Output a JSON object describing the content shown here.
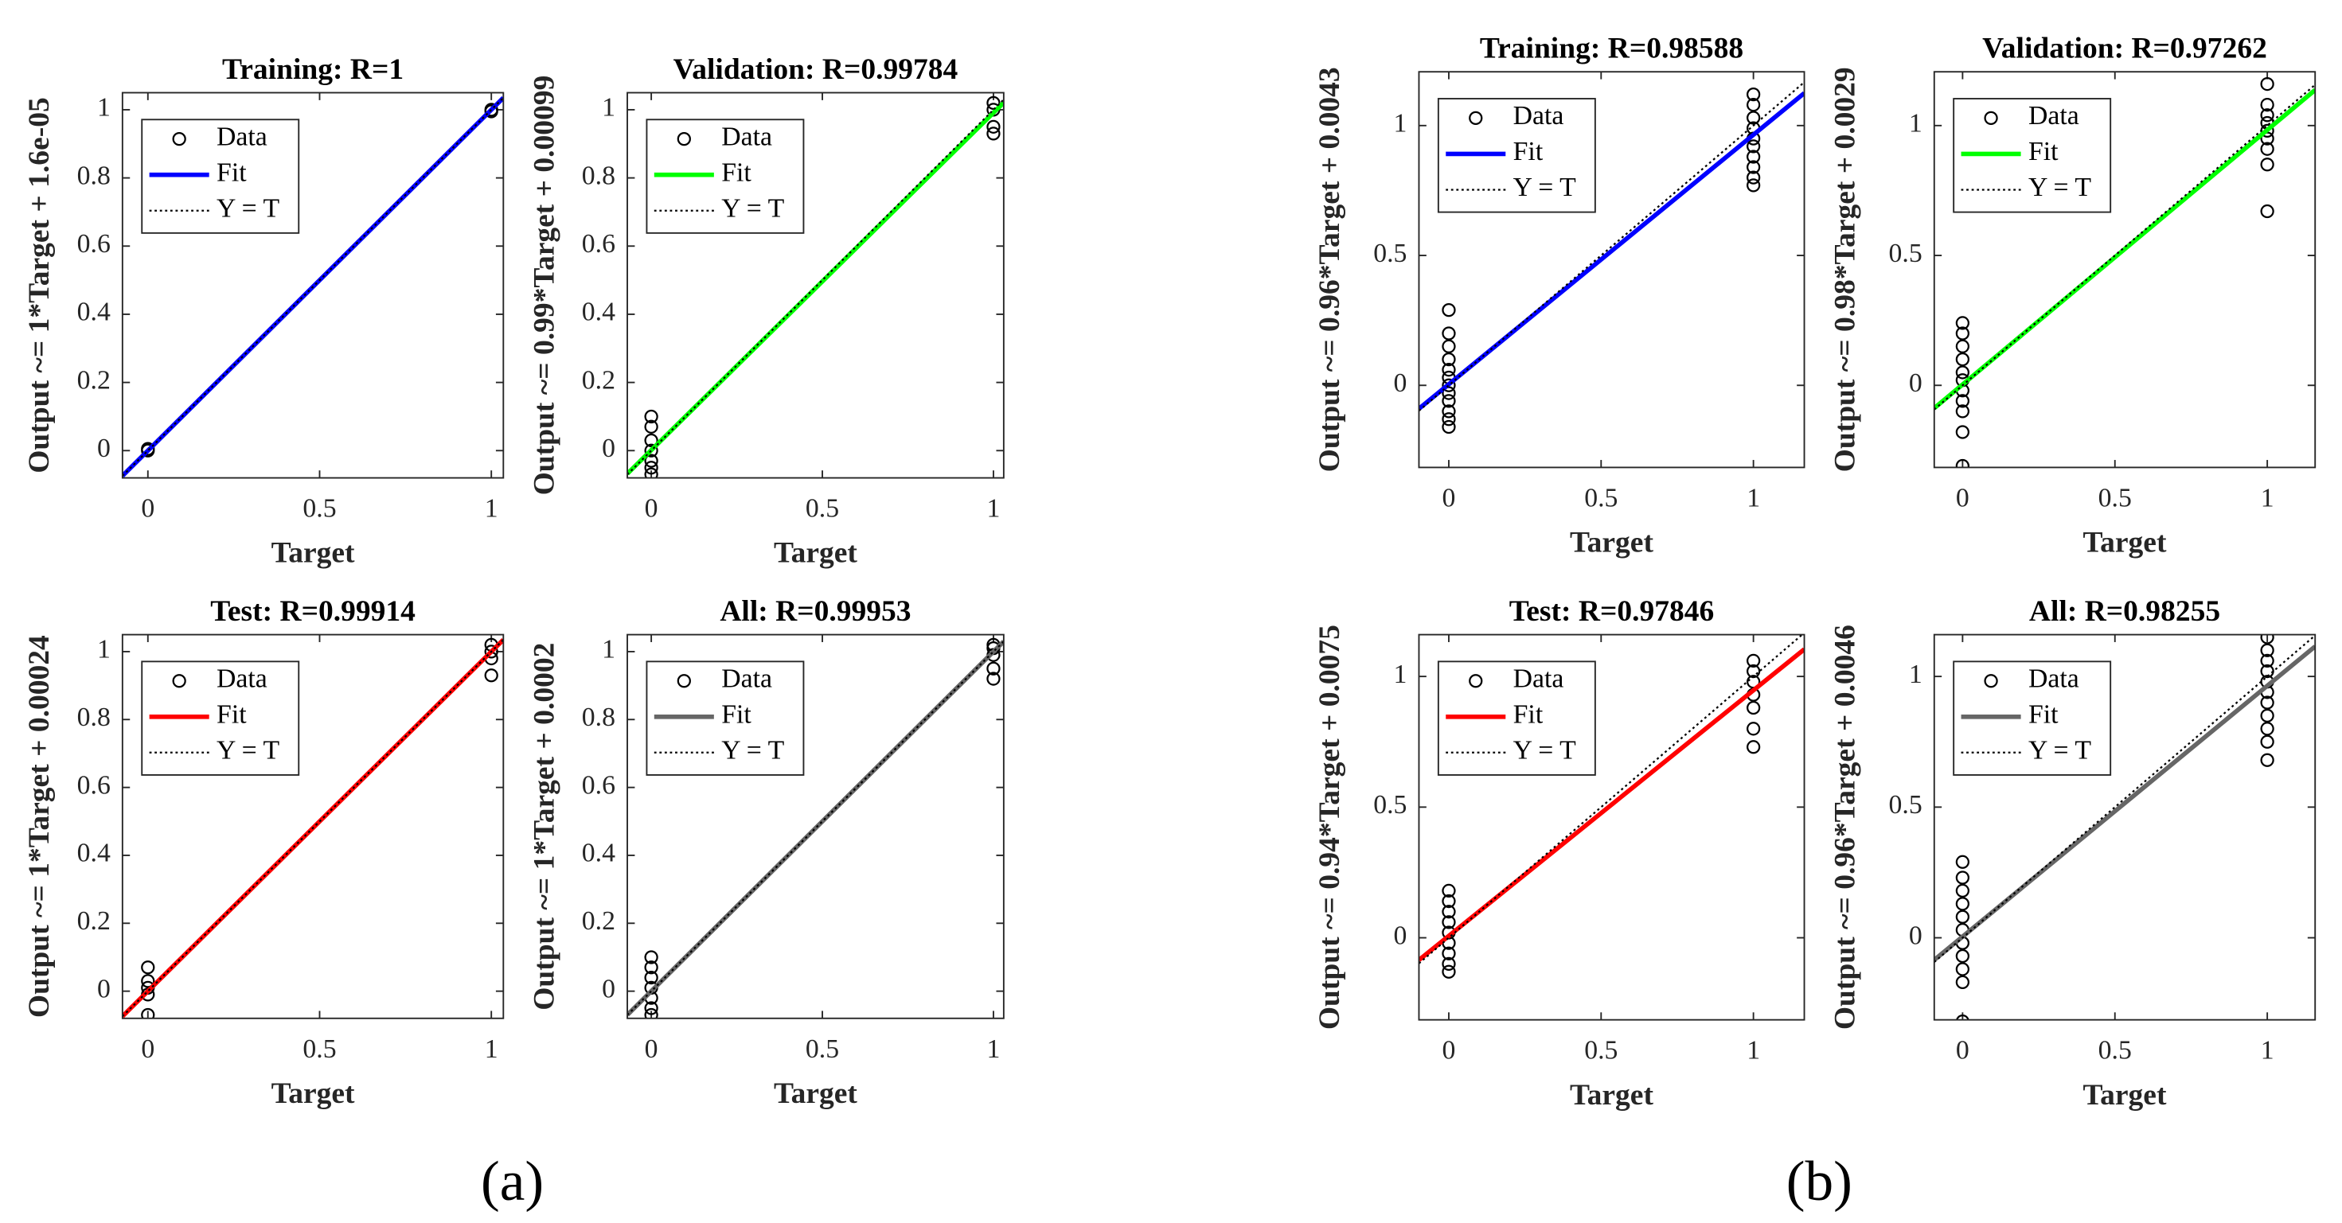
{
  "chart_data": [
    {
      "type": "scatter",
      "title": "Training: R=1",
      "xlabel": "Target",
      "ylabel": "Output ~= 1*Target + 1.6e-05",
      "xlim": [
        -0.074,
        1.035
      ],
      "ylim": [
        -0.08,
        1.05
      ],
      "xticks": [
        0,
        0.5,
        1
      ],
      "yticks": [
        0,
        0.2,
        0.4,
        0.6,
        0.8,
        1
      ],
      "series": [
        {
          "name": "Data",
          "style": "marker",
          "color": "#000000",
          "x": [
            0,
            0,
            1,
            1
          ],
          "values": [
            0,
            0.005,
            1,
            0.995
          ]
        },
        {
          "name": "Fit",
          "style": "solid",
          "color": "#0000ff",
          "x": [
            -0.074,
            1.035
          ],
          "values": [
            -0.074,
            1.035
          ]
        },
        {
          "name": "Y = T",
          "style": "dotted",
          "color": "#000000",
          "x": [
            -0.074,
            1.035
          ],
          "values": [
            -0.074,
            1.035
          ]
        }
      ]
    },
    {
      "type": "scatter",
      "title": "Validation: R=0.99784",
      "xlabel": "Target",
      "ylabel": "Output ~= 0.99*Target + 0.00099",
      "xlim": [
        -0.07,
        1.03
      ],
      "ylim": [
        -0.08,
        1.05
      ],
      "xticks": [
        0,
        0.5,
        1
      ],
      "yticks": [
        0,
        0.2,
        0.4,
        0.6,
        0.8,
        1
      ],
      "series": [
        {
          "name": "Data",
          "style": "marker",
          "color": "#000000",
          "x": [
            0,
            0,
            0,
            0,
            0,
            0,
            0,
            1,
            1,
            1,
            1
          ],
          "values": [
            0.1,
            0.07,
            0.03,
            0,
            -0.03,
            -0.05,
            -0.07,
            1.02,
            1,
            0.95,
            0.93
          ]
        },
        {
          "name": "Fit",
          "style": "solid",
          "color": "#00ff00",
          "x": [
            -0.07,
            1.03
          ],
          "values": [
            -0.068,
            1.021
          ]
        },
        {
          "name": "Y = T",
          "style": "dotted",
          "color": "#000000",
          "x": [
            -0.07,
            1.03
          ],
          "values": [
            -0.07,
            1.03
          ]
        }
      ]
    },
    {
      "type": "scatter",
      "title": "Test: R=0.99914",
      "xlabel": "Target",
      "ylabel": "Output ~= 1*Target + 0.00024",
      "xlim": [
        -0.074,
        1.035
      ],
      "ylim": [
        -0.08,
        1.05
      ],
      "xticks": [
        0,
        0.5,
        1
      ],
      "yticks": [
        0,
        0.2,
        0.4,
        0.6,
        0.8,
        1
      ],
      "series": [
        {
          "name": "Data",
          "style": "marker",
          "color": "#000000",
          "x": [
            0,
            0,
            0,
            0,
            0,
            1,
            1,
            1,
            1
          ],
          "values": [
            0.07,
            0.03,
            0.01,
            -0.01,
            -0.07,
            1.02,
            1,
            0.98,
            0.93
          ]
        },
        {
          "name": "Fit",
          "style": "solid",
          "color": "#ff0000",
          "x": [
            -0.074,
            1.035
          ],
          "values": [
            -0.074,
            1.035
          ]
        },
        {
          "name": "Y = T",
          "style": "dotted",
          "color": "#000000",
          "x": [
            -0.074,
            1.035
          ],
          "values": [
            -0.074,
            1.035
          ]
        }
      ]
    },
    {
      "type": "scatter",
      "title": "All: R=0.99953",
      "xlabel": "Target",
      "ylabel": "Output ~= 1*Target + 0.0002",
      "xlim": [
        -0.07,
        1.03
      ],
      "ylim": [
        -0.08,
        1.05
      ],
      "xticks": [
        0,
        0.5,
        1
      ],
      "yticks": [
        0,
        0.2,
        0.4,
        0.6,
        0.8,
        1
      ],
      "series": [
        {
          "name": "Data",
          "style": "marker",
          "color": "#000000",
          "x": [
            0,
            0,
            0,
            0,
            0,
            0,
            0,
            1,
            1,
            1,
            1,
            1
          ],
          "values": [
            0.1,
            0.07,
            0.04,
            0.01,
            -0.02,
            -0.05,
            -0.07,
            1.02,
            1.01,
            0.99,
            0.95,
            0.92
          ]
        },
        {
          "name": "Fit",
          "style": "solid",
          "color": "#666666",
          "x": [
            -0.07,
            1.03
          ],
          "values": [
            -0.07,
            1.03
          ]
        },
        {
          "name": "Y = T",
          "style": "dotted",
          "color": "#000000",
          "x": [
            -0.07,
            1.03
          ],
          "values": [
            -0.07,
            1.03
          ]
        }
      ]
    },
    {
      "type": "scatter",
      "title": "Training: R=0.98588",
      "xlabel": "Target",
      "ylabel": "Output ~= 0.96*Target + 0.0043",
      "xlim": [
        -0.098,
        1.167
      ],
      "ylim": [
        -0.316,
        1.207
      ],
      "xticks": [
        0,
        0.5,
        1
      ],
      "yticks": [
        0,
        0.5,
        1
      ],
      "series": [
        {
          "name": "Data",
          "style": "marker",
          "color": "#000000",
          "x": [
            0,
            0,
            0,
            0,
            0,
            0,
            0,
            0,
            0,
            0,
            0,
            0,
            1,
            1,
            1,
            1,
            1,
            1,
            1,
            1,
            1,
            1
          ],
          "values": [
            0.29,
            0.2,
            0.15,
            0.1,
            0.06,
            0.03,
            0,
            -0.03,
            -0.06,
            -0.1,
            -0.13,
            -0.16,
            1.12,
            1.08,
            1.03,
            0.99,
            0.95,
            0.92,
            0.88,
            0.84,
            0.8,
            0.77
          ]
        },
        {
          "name": "Fit",
          "style": "solid",
          "color": "#0000ff",
          "x": [
            -0.098,
            1.167
          ],
          "values": [
            -0.09,
            1.125
          ]
        },
        {
          "name": "Y = T",
          "style": "dotted",
          "color": "#000000",
          "x": [
            -0.098,
            1.167
          ],
          "values": [
            -0.098,
            1.167
          ]
        }
      ]
    },
    {
      "type": "scatter",
      "title": "Validation: R=0.97262",
      "xlabel": "Target",
      "ylabel": "Output ~= 0.98*Target + 0.0029",
      "xlim": [
        -0.093,
        1.157
      ],
      "ylim": [
        -0.316,
        1.207
      ],
      "xticks": [
        0,
        0.5,
        1
      ],
      "yticks": [
        0,
        0.5,
        1
      ],
      "series": [
        {
          "name": "Data",
          "style": "marker",
          "color": "#000000",
          "x": [
            0,
            0,
            0,
            0,
            0,
            0,
            0,
            0,
            0,
            0,
            0,
            1,
            1,
            1,
            1,
            1,
            1,
            1,
            1,
            1
          ],
          "values": [
            0.24,
            0.2,
            0.15,
            0.1,
            0.05,
            0.02,
            -0.02,
            -0.06,
            -0.1,
            -0.18,
            -0.31,
            1.16,
            1.08,
            1.04,
            1.01,
            0.98,
            0.95,
            0.91,
            0.85,
            0.67
          ]
        },
        {
          "name": "Fit",
          "style": "solid",
          "color": "#00ff00",
          "x": [
            -0.093,
            1.157
          ],
          "values": [
            -0.088,
            1.137
          ]
        },
        {
          "name": "Y = T",
          "style": "dotted",
          "color": "#000000",
          "x": [
            -0.093,
            1.157
          ],
          "values": [
            -0.093,
            1.157
          ]
        }
      ]
    },
    {
      "type": "scatter",
      "title": "Test: R=0.97846",
      "xlabel": "Target",
      "ylabel": "Output ~= 0.94*Target + 0.0075",
      "xlim": [
        -0.098,
        1.167
      ],
      "ylim": [
        -0.314,
        1.16
      ],
      "xticks": [
        0,
        0.5,
        1
      ],
      "yticks": [
        0,
        0.5,
        1
      ],
      "series": [
        {
          "name": "Data",
          "style": "marker",
          "color": "#000000",
          "x": [
            0,
            0,
            0,
            0,
            0,
            0,
            0,
            0,
            0,
            1,
            1,
            1,
            1,
            1,
            1,
            1
          ],
          "values": [
            0.18,
            0.14,
            0.1,
            0.06,
            0.02,
            -0.02,
            -0.06,
            -0.1,
            -0.13,
            1.06,
            1.02,
            0.98,
            0.93,
            0.88,
            0.8,
            0.73
          ]
        },
        {
          "name": "Fit",
          "style": "solid",
          "color": "#ff0000",
          "x": [
            -0.098,
            1.167
          ],
          "values": [
            -0.085,
            1.104
          ]
        },
        {
          "name": "Y = T",
          "style": "dotted",
          "color": "#000000",
          "x": [
            -0.098,
            1.167
          ],
          "values": [
            -0.098,
            1.167
          ]
        }
      ]
    },
    {
      "type": "scatter",
      "title": "All: R=0.98255",
      "xlabel": "Target",
      "ylabel": "Output ~= 0.96*Target + 0.0046",
      "xlim": [
        -0.093,
        1.157
      ],
      "ylim": [
        -0.314,
        1.16
      ],
      "xticks": [
        0,
        0.5,
        1
      ],
      "yticks": [
        0,
        0.5,
        1
      ],
      "series": [
        {
          "name": "Data",
          "style": "marker",
          "color": "#000000",
          "x": [
            0,
            0,
            0,
            0,
            0,
            0,
            0,
            0,
            0,
            0,
            0,
            1,
            1,
            1,
            1,
            1,
            1,
            1,
            1,
            1,
            1,
            1
          ],
          "values": [
            0.29,
            0.23,
            0.18,
            0.13,
            0.08,
            0.03,
            -0.02,
            -0.07,
            -0.12,
            -0.17,
            -0.32,
            1.15,
            1.1,
            1.06,
            1.02,
            0.98,
            0.94,
            0.9,
            0.85,
            0.8,
            0.75,
            0.68
          ]
        },
        {
          "name": "Fit",
          "style": "solid",
          "color": "#666666",
          "x": [
            -0.093,
            1.157
          ],
          "values": [
            -0.085,
            1.115
          ]
        },
        {
          "name": "Y = T",
          "style": "dotted",
          "color": "#000000",
          "x": [
            -0.093,
            1.157
          ],
          "values": [
            -0.093,
            1.157
          ]
        }
      ]
    }
  ],
  "captions": [
    "(a)",
    "(b)"
  ]
}
